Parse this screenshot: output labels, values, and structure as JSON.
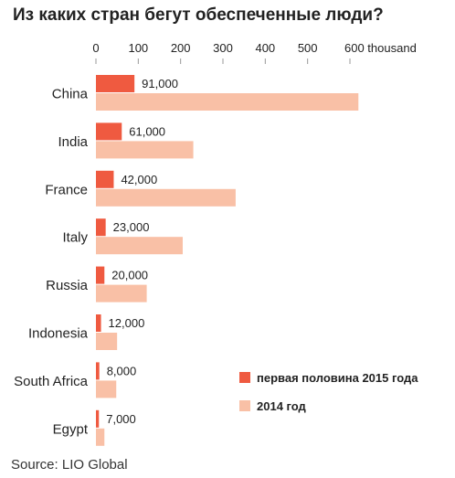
{
  "title": "Из каких стран бегут обеспеченные люди?",
  "source": "Source: LIO Global",
  "colors": {
    "series_2015": "#ef5a40",
    "series_2014": "#f9c0a6",
    "text": "#222222",
    "axis": "#999999"
  },
  "chart_data": {
    "type": "bar",
    "orientation": "horizontal",
    "title": "Из каких стран бегут обеспеченные люди?",
    "categories": [
      "China",
      "India",
      "France",
      "Italy",
      "Russia",
      "Indonesia",
      "South Africa",
      "Egypt"
    ],
    "xlim": [
      0,
      600000
    ],
    "ticks": [
      0,
      100000,
      200000,
      300000,
      400000,
      500000,
      600000
    ],
    "tick_labels": [
      "0",
      "100",
      "200",
      "300",
      "400",
      "500",
      "600 thousand"
    ],
    "axis_position": "top",
    "grid": false,
    "legend": "right",
    "series": [
      {
        "name": "первая половина 2015 года",
        "values": [
          91000,
          61000,
          42000,
          23000,
          20000,
          12000,
          8000,
          7000
        ],
        "data_labels": [
          "91,000",
          "61,000",
          "42,000",
          "23,000",
          "20,000",
          "12,000",
          "8,000",
          "7,000"
        ],
        "color": "#ef5a40"
      },
      {
        "name": "2014 год",
        "values": [
          620000,
          230000,
          330000,
          205000,
          120000,
          50000,
          48000,
          20000
        ],
        "color": "#f9c0a6"
      }
    ]
  }
}
